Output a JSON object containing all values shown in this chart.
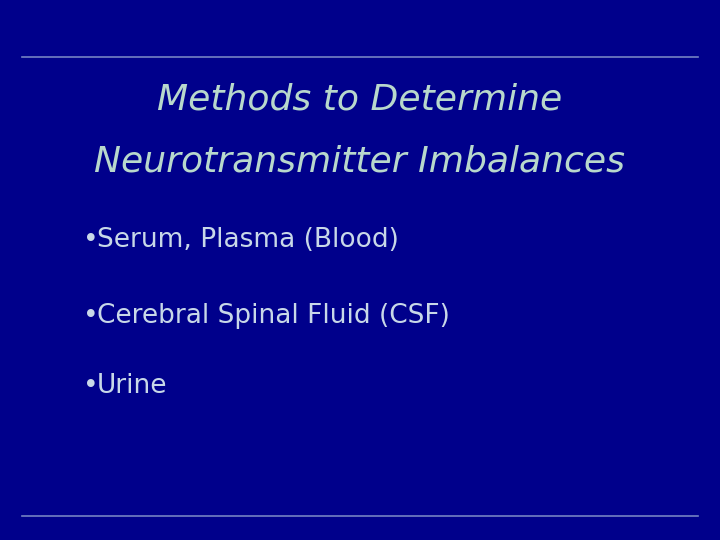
{
  "title_line1": "Methods to Determine",
  "title_line2": "Neurotransmitter Imbalances",
  "bullet_items": [
    "Serum, Plasma (Blood)",
    "Cerebral Spinal Fluid (CSF)",
    "Urine"
  ],
  "background_color": "#00008B",
  "title_color": "#B8D8CC",
  "bullet_color": "#C8D8E8",
  "line_color": "#8899CC",
  "title_fontsize": 26,
  "bullet_fontsize": 19,
  "fig_width": 7.2,
  "fig_height": 5.4,
  "dpi": 100
}
